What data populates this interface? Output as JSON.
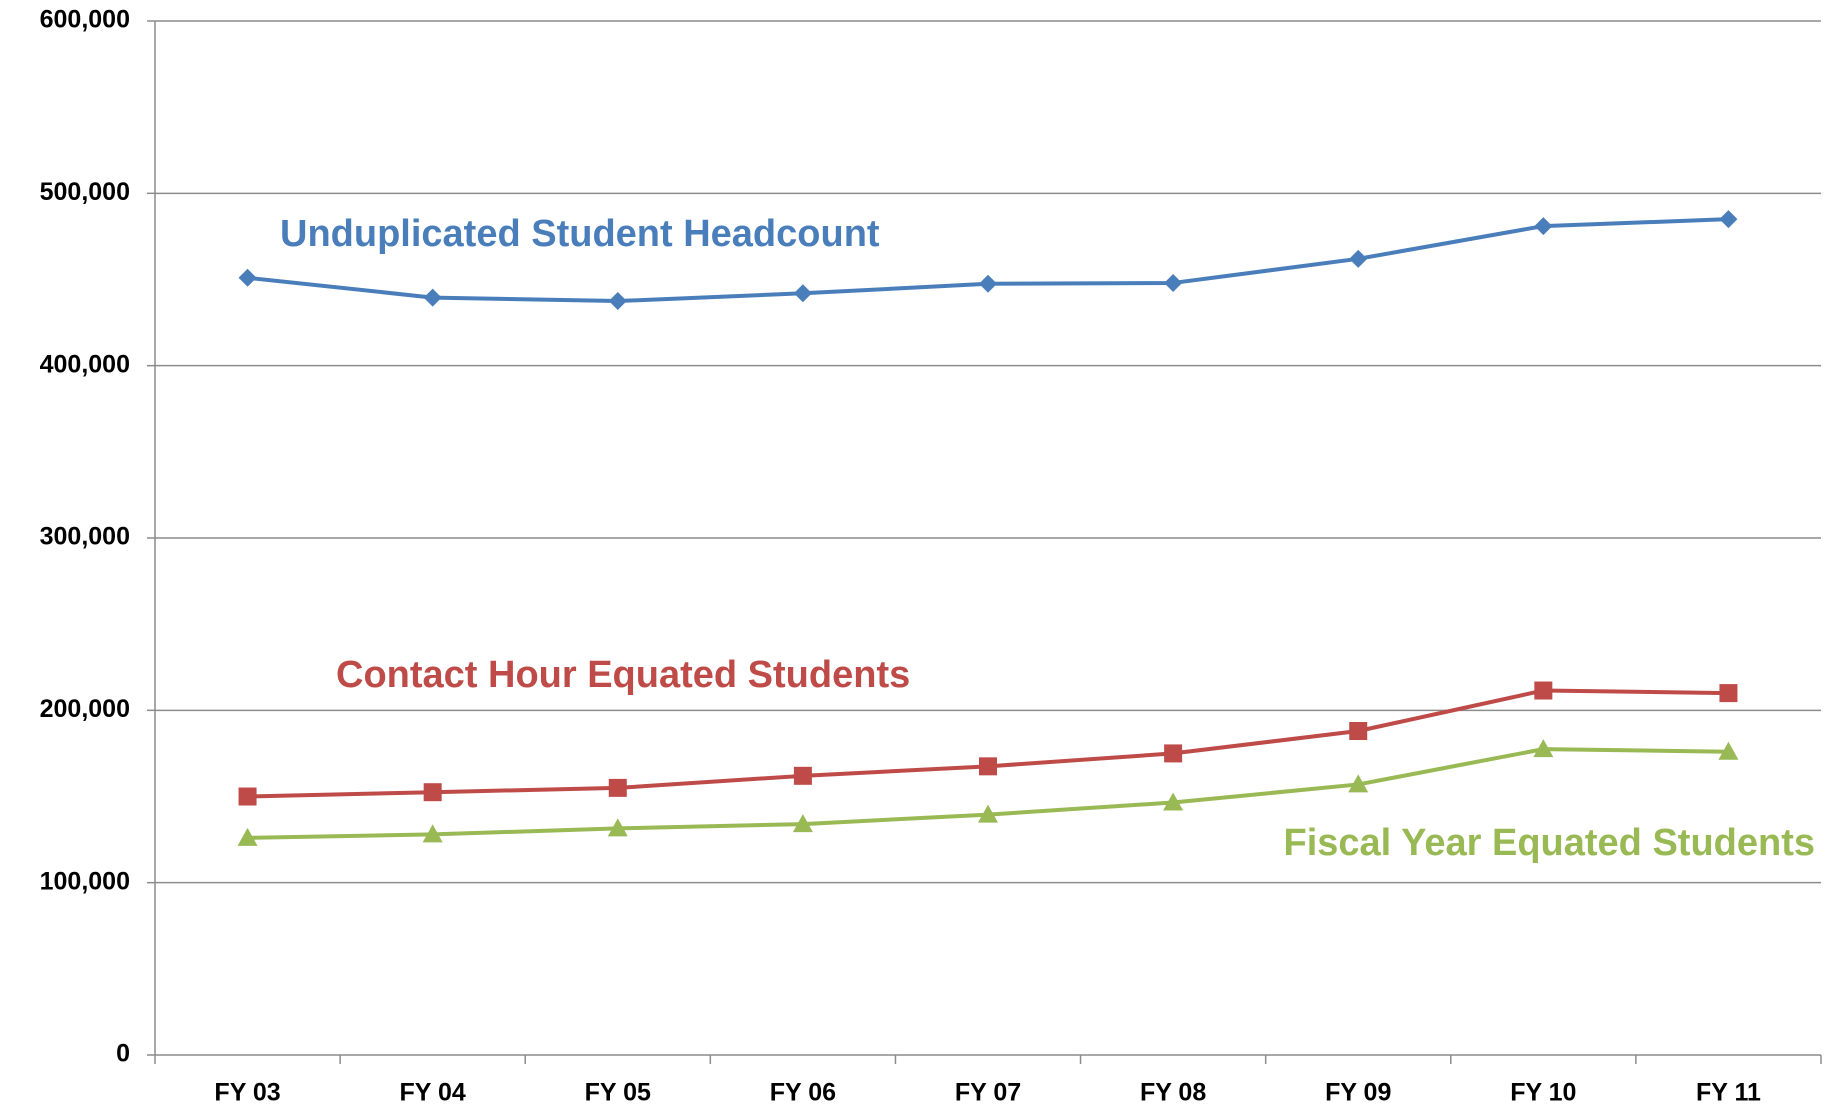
{
  "chart_data": {
    "type": "line",
    "categories": [
      "FY 03",
      "FY 04",
      "FY 05",
      "FY 06",
      "FY 07",
      "FY 08",
      "FY 09",
      "FY 10",
      "FY 11"
    ],
    "series": [
      {
        "name": "Unduplicated Student Headcount",
        "color": "#4a7ebb",
        "marker": "diamond",
        "values": [
          451000,
          439500,
          437500,
          442000,
          447500,
          448000,
          462000,
          481000,
          485000
        ]
      },
      {
        "name": "Contact Hour Equated Students",
        "color": "#be4b48",
        "marker": "square",
        "values": [
          150000,
          152500,
          155000,
          162000,
          167500,
          175000,
          188000,
          211500,
          210000
        ]
      },
      {
        "name": "Fiscal Year Equated Students",
        "color": "#98b954",
        "marker": "triangle",
        "values": [
          126000,
          128000,
          131500,
          134000,
          139500,
          146500,
          157000,
          177500,
          176000
        ]
      }
    ],
    "ylim": [
      0,
      600000
    ],
    "yticks": [
      0,
      {
        "value": 100000,
        "label": "100,000"
      },
      {
        "value": 200000,
        "label": "200,000"
      },
      {
        "value": 300000,
        "label": "300,000"
      },
      {
        "value": 400000,
        "label": "400,000"
      },
      {
        "value": 500000,
        "label": "500,000"
      },
      {
        "value": 600000,
        "label": "600,000"
      }
    ],
    "grid": true
  }
}
